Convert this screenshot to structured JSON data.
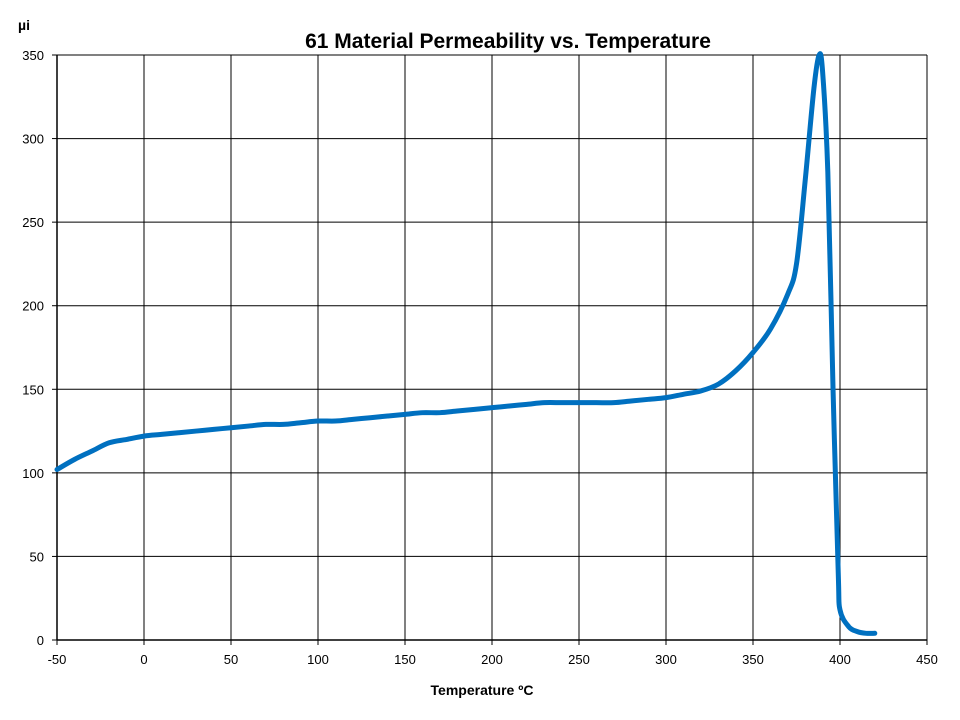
{
  "chart_data": {
    "type": "line",
    "title": "61 Material Permeability vs. Temperature",
    "xlabel": "Temperature ºC",
    "ylabel": "µi",
    "xlim": [
      -50,
      450
    ],
    "ylim": [
      0,
      350
    ],
    "xticks": [
      -50,
      0,
      50,
      100,
      150,
      200,
      250,
      300,
      350,
      400,
      450
    ],
    "yticks": [
      0,
      50,
      100,
      150,
      200,
      250,
      300,
      350
    ],
    "grid": true,
    "legend": "none",
    "series": [
      {
        "color": "#0070c0",
        "points": [
          [
            -50,
            102
          ],
          [
            -40,
            108
          ],
          [
            -30,
            113
          ],
          [
            -20,
            118
          ],
          [
            -10,
            120
          ],
          [
            0,
            122
          ],
          [
            10,
            123
          ],
          [
            20,
            124
          ],
          [
            30,
            125
          ],
          [
            40,
            126
          ],
          [
            50,
            127
          ],
          [
            60,
            128
          ],
          [
            70,
            129
          ],
          [
            80,
            129
          ],
          [
            90,
            130
          ],
          [
            100,
            131
          ],
          [
            110,
            131
          ],
          [
            120,
            132
          ],
          [
            130,
            133
          ],
          [
            140,
            134
          ],
          [
            150,
            135
          ],
          [
            160,
            136
          ],
          [
            170,
            136
          ],
          [
            180,
            137
          ],
          [
            190,
            138
          ],
          [
            200,
            139
          ],
          [
            210,
            140
          ],
          [
            220,
            141
          ],
          [
            230,
            142
          ],
          [
            240,
            142
          ],
          [
            250,
            142
          ],
          [
            260,
            142
          ],
          [
            270,
            142
          ],
          [
            280,
            143
          ],
          [
            290,
            144
          ],
          [
            300,
            145
          ],
          [
            310,
            147
          ],
          [
            320,
            149
          ],
          [
            330,
            153
          ],
          [
            340,
            161
          ],
          [
            350,
            172
          ],
          [
            360,
            186
          ],
          [
            370,
            207
          ],
          [
            375,
            225
          ],
          [
            380,
            275
          ],
          [
            385,
            330
          ],
          [
            388,
            350
          ],
          [
            390,
            340
          ],
          [
            393,
            280
          ],
          [
            396,
            150
          ],
          [
            399,
            40
          ],
          [
            400,
            18
          ],
          [
            405,
            8
          ],
          [
            410,
            5
          ],
          [
            415,
            4
          ],
          [
            420,
            4
          ]
        ]
      }
    ]
  }
}
